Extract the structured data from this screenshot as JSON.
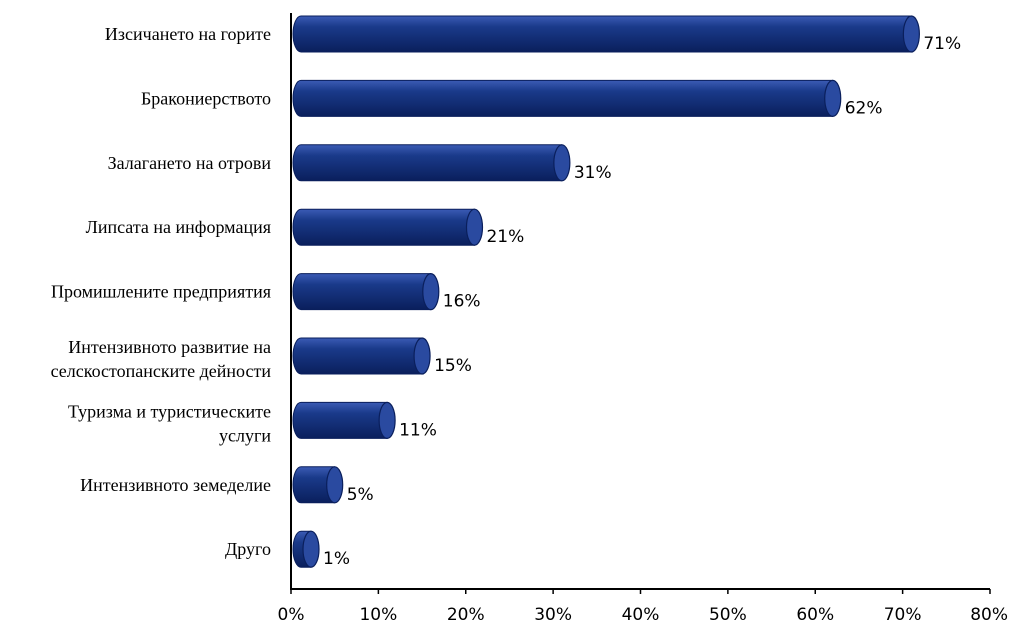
{
  "chart_data": {
    "type": "bar",
    "orientation": "horizontal",
    "title": "",
    "xlabel": "",
    "ylabel": "",
    "categories": [
      [
        "Изсичането на горите"
      ],
      [
        "Бракониерството"
      ],
      [
        "Залагането на отрови"
      ],
      [
        "Липсата на информация"
      ],
      [
        "Промишлените предприятия"
      ],
      [
        "Интензивното развитие на",
        "селскостопанските дейности"
      ],
      [
        "Туризма и туристическите",
        "услуги"
      ],
      [
        "Интензивното земеделие"
      ],
      [
        "Друго"
      ]
    ],
    "values": [
      71,
      62,
      31,
      21,
      16,
      15,
      11,
      5,
      1
    ],
    "value_labels": [
      "71%",
      "62%",
      "31%",
      "21%",
      "16%",
      "15%",
      "11%",
      "5%",
      "1%"
    ],
    "xlim": [
      0,
      80
    ],
    "xticks": [
      0,
      10,
      20,
      30,
      40,
      50,
      60,
      70,
      80
    ],
    "xtick_labels": [
      "0%",
      "10%",
      "20%",
      "30%",
      "40%",
      "50%",
      "60%",
      "70%",
      "80%"
    ],
    "grid": false,
    "legend": "none",
    "bar_style": "3d-cylinder",
    "colors": {
      "bar_dark": "#0a1f5c",
      "bar_mid": "#1a3a8a",
      "bar_light": "#3b5bb5",
      "bar_cap": "#2a4aa0"
    }
  }
}
